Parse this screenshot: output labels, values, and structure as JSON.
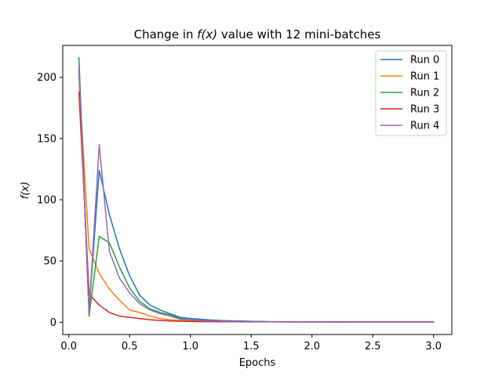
{
  "chart_data": {
    "type": "line",
    "title_parts": [
      "Change in ",
      "f(x)",
      " value with 12 mini-batches"
    ],
    "xlabel": "Epochs",
    "ylabel": "f(x)",
    "xlim": [
      -0.05,
      3.15
    ],
    "ylim": [
      -10,
      226
    ],
    "xticks": [
      0.0,
      0.5,
      1.0,
      1.5,
      2.0,
      2.5,
      3.0
    ],
    "xtick_labels": [
      "0.0",
      "0.5",
      "1.0",
      "1.5",
      "2.0",
      "2.5",
      "3.0"
    ],
    "yticks": [
      0,
      50,
      100,
      150,
      200
    ],
    "ytick_labels": [
      "0",
      "50",
      "100",
      "150",
      "200"
    ],
    "grid": false,
    "legend_position": "top-right",
    "x": [
      0.0833,
      0.1667,
      0.25,
      0.3333,
      0.4167,
      0.5,
      0.5833,
      0.6667,
      0.75,
      0.8333,
      0.9167,
      1.0,
      1.0833,
      1.1667,
      1.25,
      1.3333,
      1.4167,
      1.5,
      1.5833,
      1.6667,
      1.75,
      1.8333,
      1.9167,
      2.0,
      2.0833,
      2.1667,
      2.25,
      2.3333,
      2.4167,
      2.5,
      2.5833,
      2.6667,
      2.75,
      2.8333,
      2.9167,
      3.0
    ],
    "series": [
      {
        "name": "Run 0",
        "color": "#1f77b4",
        "values": [
          205,
          10,
          124,
          88,
          60,
          38,
          22,
          14,
          10,
          7,
          4,
          3,
          2.5,
          1.8,
          1.4,
          1.2,
          1,
          0.8,
          0.6,
          0.5,
          0.5,
          0.4,
          0.4,
          0.3,
          0.3,
          0.3,
          0.3,
          0.2,
          0.2,
          0.2,
          0.2,
          0.2,
          0.2,
          0.2,
          0.2,
          0.2
        ]
      },
      {
        "name": "Run 1",
        "color": "#ff7f0e",
        "values": [
          200,
          60,
          40,
          27,
          18,
          10,
          8,
          5,
          3,
          2,
          1.5,
          1.2,
          1,
          0.8,
          0.7,
          0.6,
          0.5,
          0.5,
          0.4,
          0.4,
          0.3,
          0.3,
          0.3,
          0.3,
          0.2,
          0.2,
          0.2,
          0.2,
          0.2,
          0.2,
          0.2,
          0.2,
          0.2,
          0.2,
          0.2,
          0.2
        ]
      },
      {
        "name": "Run 2",
        "color": "#2ca02c",
        "values": [
          216,
          5,
          70,
          65,
          45,
          28,
          17,
          11,
          8,
          6,
          3,
          2,
          1.5,
          1.2,
          1,
          0.8,
          0.6,
          0.5,
          0.5,
          0.4,
          0.4,
          0.3,
          0.3,
          0.3,
          0.3,
          0.2,
          0.2,
          0.2,
          0.2,
          0.2,
          0.2,
          0.2,
          0.2,
          0.2,
          0.2,
          0.2
        ]
      },
      {
        "name": "Run 3",
        "color": "#d62728",
        "values": [
          188,
          23,
          14,
          8,
          5,
          4,
          3,
          2,
          1.5,
          1,
          0.8,
          0.6,
          0.5,
          0.5,
          0.4,
          0.4,
          0.3,
          0.3,
          0.3,
          0.3,
          0.2,
          0.2,
          0.2,
          0.2,
          0.2,
          0.2,
          0.2,
          0.2,
          0.2,
          0.2,
          0.2,
          0.2,
          0.2,
          0.2,
          0.2,
          0.2
        ]
      },
      {
        "name": "Run 4",
        "color": "#9467bd",
        "values": [
          210,
          8,
          145,
          58,
          36,
          24,
          15,
          10,
          7,
          5,
          2.5,
          2,
          1.5,
          1.2,
          1,
          0.8,
          0.6,
          0.5,
          0.5,
          0.4,
          0.4,
          0.3,
          0.3,
          0.3,
          0.3,
          0.2,
          0.2,
          0.2,
          0.2,
          0.2,
          0.2,
          0.2,
          0.2,
          0.2,
          0.2,
          0.2
        ]
      }
    ]
  }
}
